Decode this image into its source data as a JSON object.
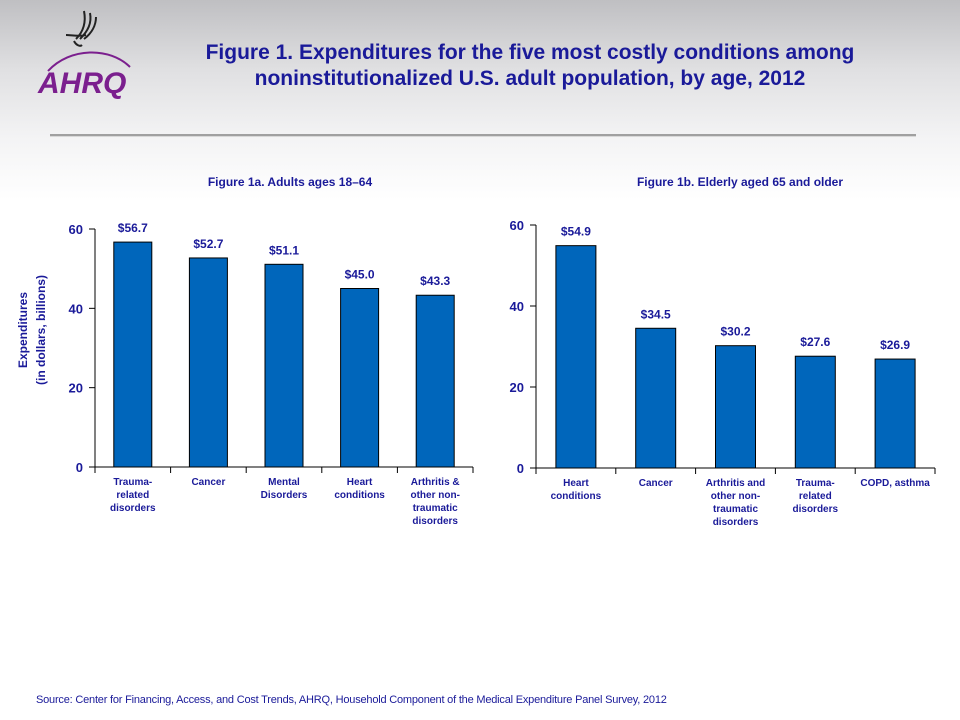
{
  "header": {
    "logo_text": "AHRQ",
    "title_line1": "Figure 1. Expenditures for the five most costly conditions among",
    "title_line2": "noninstitutionalized  U.S. adult population, by age, 2012"
  },
  "colors": {
    "bar": "#0066bb",
    "text": "#1a1a99",
    "logo_purple": "#7b1f8e"
  },
  "y_axis_label_line1": "Expenditures",
  "y_axis_label_line2": "(in dollars, billions)",
  "chart_data": [
    {
      "type": "bar",
      "title": "Figure 1a. Adults ages 18–64",
      "xlabel": "",
      "ylabel": "Expenditures (in dollars, billions)",
      "ylim": [
        0,
        60
      ],
      "yticks": [
        0,
        20,
        40,
        60
      ],
      "grid": false,
      "categories": [
        [
          "Trauma-",
          "related",
          "disorders"
        ],
        [
          "Cancer"
        ],
        [
          "Mental",
          "Disorders"
        ],
        [
          "Heart",
          "conditions"
        ],
        [
          "Arthritis &",
          "other non-",
          "traumatic",
          "disorders"
        ]
      ],
      "values": [
        56.7,
        52.7,
        51.1,
        45.0,
        43.3
      ],
      "data_labels": [
        "$56.7",
        "$52.7",
        "$51.1",
        "$45.0",
        "$43.3"
      ]
    },
    {
      "type": "bar",
      "title": "Figure 1b. Elderly aged 65 and older",
      "xlabel": "",
      "ylabel": "",
      "ylim": [
        0,
        60
      ],
      "yticks": [
        0,
        20,
        40,
        60
      ],
      "grid": false,
      "categories": [
        [
          "Heart",
          "conditions"
        ],
        [
          "Cancer"
        ],
        [
          "Arthritis and",
          "other non-",
          "traumatic",
          "disorders"
        ],
        [
          "Trauma-",
          "related",
          "disorders"
        ],
        [
          "COPD, asthma"
        ]
      ],
      "values": [
        54.9,
        34.5,
        30.2,
        27.6,
        26.9
      ],
      "data_labels": [
        "$54.9",
        "$34.5",
        "$30.2",
        "$27.6",
        "$26.9"
      ]
    }
  ],
  "footer": {
    "source": "Source: Center for Financing, Access, and Cost Trends, AHRQ, Household Component of the Medical Expenditure Panel Survey,  2012"
  }
}
